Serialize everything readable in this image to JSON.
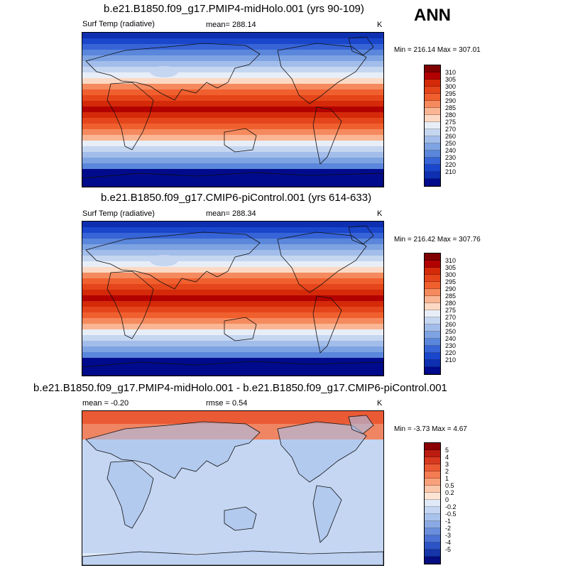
{
  "season": "ANN",
  "colors": {
    "abs_scale": [
      "#800000",
      "#b30000",
      "#d42a0a",
      "#e5451a",
      "#f0602f",
      "#f58a5e",
      "#f9b594",
      "#fcd9c4",
      "#e8eef7",
      "#c5d6f0",
      "#a2bdea",
      "#7ea3e2",
      "#5a86db",
      "#3764d6",
      "#1a46cc",
      "#0d2fb0",
      "#000a8c"
    ],
    "diff_scale": [
      "#8b0000",
      "#bb1b10",
      "#d83a1f",
      "#ea5a34",
      "#f47c52",
      "#f8a07a",
      "#fbc7ab",
      "#fde5d6",
      "#dfe9f8",
      "#c4d6f2",
      "#a8c2ec",
      "#8aa9e4",
      "#6b8edc",
      "#4c72d4",
      "#2d53c6",
      "#1636aa",
      "#050d80"
    ]
  },
  "panels": [
    {
      "title": "b.e21.B1850.f09_g17.PMIP4-midHolo.001 (yrs 90-109)",
      "variable": "Surf Temp (radiative)",
      "mean": "mean= 288.14",
      "units": "K",
      "minmax": "Min = 216.14 Max = 307.01",
      "colorbar_labels": [
        "310",
        "305",
        "300",
        "295",
        "290",
        "285",
        "280",
        "275",
        "270",
        "260",
        "250",
        "240",
        "230",
        "220",
        "210"
      ]
    },
    {
      "title": "b.e21.B1850.f09_g17.CMIP6-piControl.001 (yrs 614-633)",
      "variable": "Surf Temp (radiative)",
      "mean": "mean= 288.34",
      "units": "K",
      "minmax": "Min = 216.42 Max = 307.76",
      "colorbar_labels": [
        "310",
        "305",
        "300",
        "295",
        "290",
        "285",
        "280",
        "275",
        "270",
        "260",
        "250",
        "240",
        "230",
        "220",
        "210"
      ]
    },
    {
      "title": "b.e21.B1850.f09_g17.PMIP4-midHolo.001 - b.e21.B1850.f09_g17.CMIP6-piControl.001",
      "mean": "mean =  -0.20",
      "rmse": "rmse =   0.54",
      "units": "K",
      "minmax": "Min =  -3.73 Max =   4.67",
      "colorbar_labels": [
        "5",
        "4",
        "3",
        "2",
        "1",
        "0.5",
        "0.2",
        "0",
        "-0.2",
        "-0.5",
        "-1",
        "-2",
        "-3",
        "-4",
        "-5"
      ]
    }
  ]
}
